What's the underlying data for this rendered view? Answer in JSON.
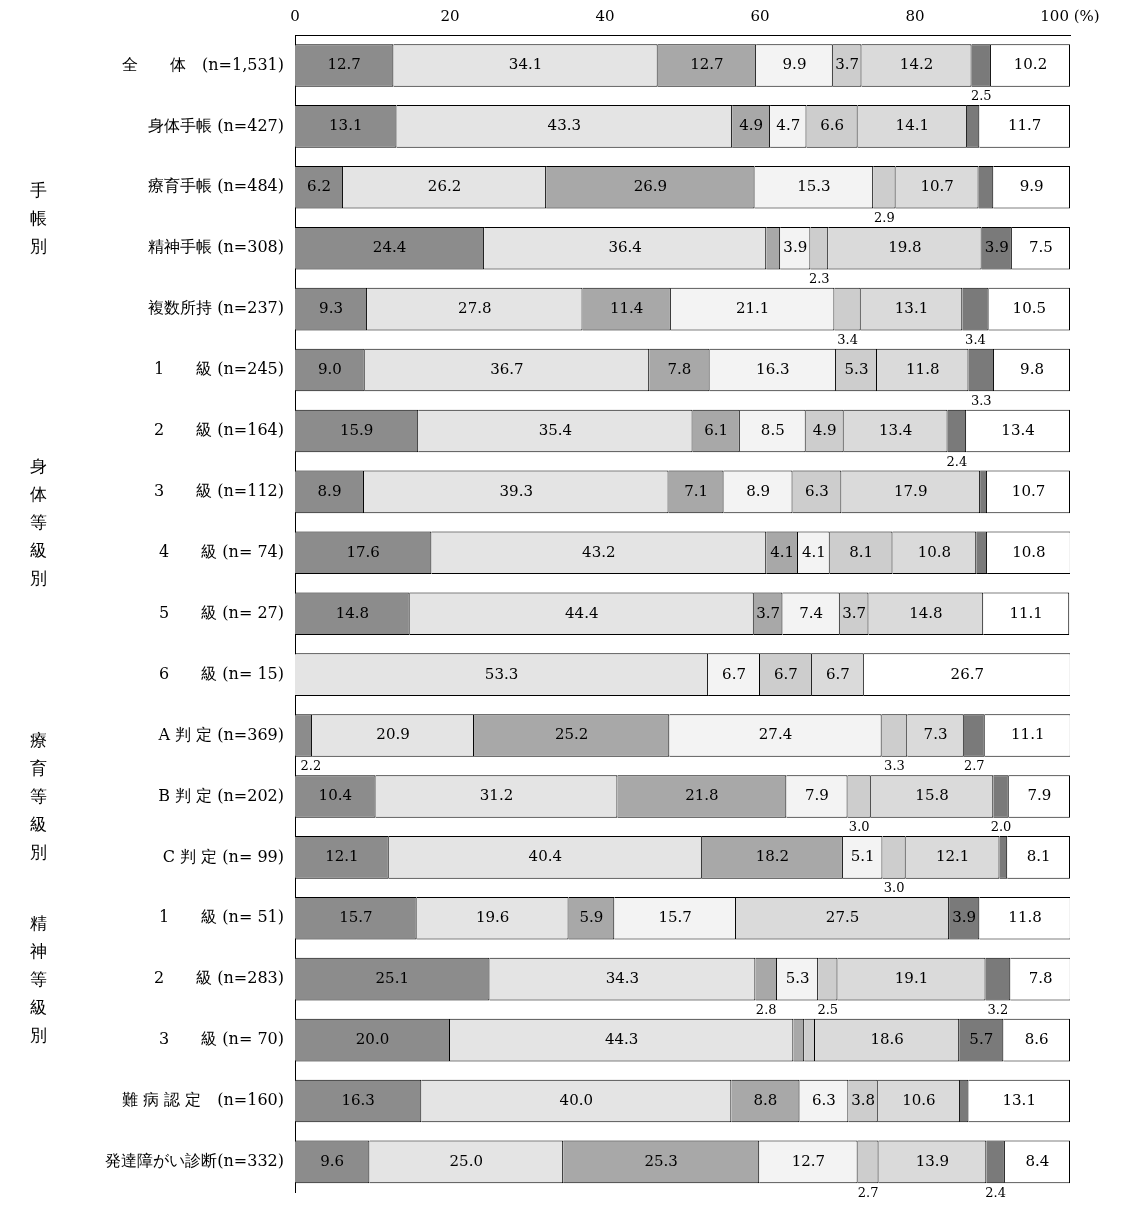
{
  "chart_data": {
    "type": "bar",
    "orientation": "horizontal",
    "stacked": true,
    "categories": [
      "全　　体　(n=1,531)",
      "身体手帳 (n=427)",
      "療育手帳 (n=484)",
      "精神手帳 (n=308)",
      "複数所持 (n=237)",
      "1　　級 (n=245)",
      "2　　級 (n=164)",
      "3　　級 (n=112)",
      "4　　級 (n= 74)",
      "5　　級 (n= 27)",
      "6　　級 (n= 15)",
      "A 判 定 (n=369)",
      "B 判 定 (n=202)",
      "C 判 定 (n= 99)",
      "1　　級 (n= 51)",
      "2　　級 (n=283)",
      "3　　級 (n= 70)",
      "難 病 認 定　(n=160)",
      "発達障がい診断(n=332)"
    ],
    "series": [
      {
        "color": "#8c8c8c",
        "values": [
          12.7,
          13.1,
          6.2,
          24.4,
          9.3,
          9.0,
          15.9,
          8.9,
          17.6,
          14.8,
          0,
          2.2,
          10.4,
          12.1,
          15.7,
          25.1,
          20.0,
          16.3,
          9.6
        ],
        "value_labels": [
          "12.7",
          "13.1",
          "6.2",
          "24.4",
          "9.3",
          "9.0",
          "15.9",
          "8.9",
          "17.6",
          "14.8",
          null,
          "2.2",
          "10.4",
          "12.1",
          "15.7",
          "25.1",
          "20.0",
          "16.3",
          "9.6"
        ]
      },
      {
        "color": "#e4e4e4",
        "values": [
          34.1,
          43.3,
          26.2,
          36.4,
          27.8,
          36.7,
          35.4,
          39.3,
          43.2,
          44.4,
          53.3,
          20.9,
          31.2,
          40.4,
          19.6,
          34.3,
          44.3,
          40.0,
          25.0
        ],
        "value_labels": [
          "34.1",
          "43.3",
          "26.2",
          "36.4",
          "27.8",
          "36.7",
          "35.4",
          "39.3",
          "43.2",
          "44.4",
          "53.3",
          "20.9",
          "31.2",
          "40.4",
          "19.6",
          "34.3",
          "44.3",
          "40.0",
          "25.0"
        ]
      },
      {
        "color": "#a8a8a8",
        "values": [
          12.7,
          4.9,
          26.9,
          1.8,
          11.4,
          7.8,
          6.1,
          7.1,
          4.1,
          3.7,
          0,
          25.2,
          21.8,
          18.2,
          5.9,
          2.8,
          1.4,
          8.8,
          25.3
        ],
        "value_labels": [
          "12.7",
          "4.9",
          "26.9",
          null,
          "11.4",
          "7.8",
          "6.1",
          "7.1",
          "4.1",
          "3.7",
          null,
          "25.2",
          "21.8",
          "18.2",
          "5.9",
          "2.8",
          null,
          "8.8",
          "25.3"
        ]
      },
      {
        "color": "#f3f3f3",
        "values": [
          9.9,
          4.7,
          15.3,
          3.9,
          21.1,
          16.3,
          8.5,
          8.9,
          4.1,
          7.4,
          6.7,
          27.4,
          7.9,
          5.1,
          15.7,
          5.3,
          0,
          6.3,
          12.7
        ],
        "value_labels": [
          "9.9",
          "4.7",
          "15.3",
          "3.9",
          "21.1",
          "16.3",
          "8.5",
          "8.9",
          "4.1",
          "7.4",
          "6.7",
          "27.4",
          "7.9",
          "5.1",
          "15.7",
          "5.3",
          null,
          "6.3",
          "12.7"
        ]
      },
      {
        "color": "#cdcdcd",
        "values": [
          3.7,
          6.6,
          2.9,
          2.3,
          3.4,
          5.3,
          4.9,
          6.3,
          8.1,
          3.7,
          6.7,
          3.3,
          3.0,
          3.0,
          0,
          2.5,
          1.4,
          3.8,
          2.7
        ],
        "value_labels": [
          "3.7",
          "6.6",
          "2.9",
          "2.3",
          "3.4",
          "5.3",
          "4.9",
          "6.3",
          "8.1",
          "3.7",
          "6.7",
          "3.3",
          "3.0",
          "3.0",
          null,
          "2.5",
          null,
          "3.8",
          "2.7"
        ]
      },
      {
        "color": "#dadada",
        "values": [
          14.2,
          14.1,
          10.7,
          19.8,
          13.1,
          11.8,
          13.4,
          17.9,
          10.8,
          14.8,
          6.7,
          7.3,
          15.8,
          12.1,
          27.5,
          19.1,
          18.6,
          10.6,
          13.9
        ],
        "value_labels": [
          "14.2",
          "14.1",
          "10.7",
          "19.8",
          "13.1",
          "11.8",
          "13.4",
          "17.9",
          "10.8",
          "14.8",
          "6.7",
          "7.3",
          "15.8",
          "12.1",
          "27.5",
          "19.1",
          "18.6",
          "10.6",
          "13.9"
        ]
      },
      {
        "color": "#7a7a7a",
        "values": [
          2.5,
          1.6,
          1.9,
          3.9,
          3.4,
          3.3,
          2.4,
          0.9,
          1.4,
          0,
          0,
          2.7,
          2.0,
          1.0,
          3.9,
          3.2,
          5.7,
          1.1,
          2.4
        ],
        "value_labels": [
          "2.5",
          null,
          null,
          "3.9",
          "3.4",
          "3.3",
          "2.4",
          null,
          null,
          null,
          null,
          "2.7",
          "2.0",
          null,
          "3.9",
          "3.2",
          "5.7",
          null,
          "2.4"
        ]
      },
      {
        "color": "#ffffff",
        "values": [
          10.2,
          11.7,
          9.9,
          7.5,
          10.5,
          9.8,
          13.4,
          10.7,
          10.8,
          11.1,
          26.7,
          11.1,
          7.9,
          8.1,
          11.8,
          7.8,
          8.6,
          13.1,
          8.4
        ],
        "value_labels": [
          "10.2",
          "11.7",
          "9.9",
          "7.5",
          "10.5",
          "9.8",
          "13.4",
          "10.7",
          "10.8",
          "11.1",
          "26.7",
          "11.1",
          "7.9",
          "8.1",
          "11.8",
          "7.8",
          "8.6",
          "13.1",
          "8.4"
        ]
      }
    ],
    "xlim": [
      0,
      100
    ],
    "xticks": [
      0,
      20,
      40,
      60,
      80,
      {
        "value": 100,
        "label": "100 (%)"
      }
    ],
    "grid": false,
    "legend": false,
    "annotations": [
      "手帳別",
      "身体等級別",
      "療育等級別",
      "精神等級別"
    ]
  }
}
